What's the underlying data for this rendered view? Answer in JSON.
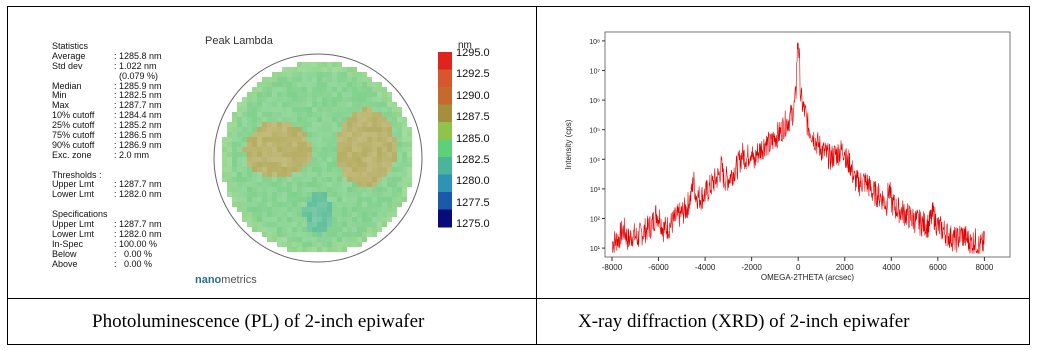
{
  "left_panel": {
    "stats_heading": "Statistics",
    "stats": [
      {
        "k": "Average",
        "v": ": 1285.8 nm"
      },
      {
        "k": "Std dev",
        "v": ": 1.022 nm"
      },
      {
        "k": "",
        "v": "  (0.079 %)"
      },
      {
        "k": "Median",
        "v": ": 1285.9 nm"
      },
      {
        "k": "Min",
        "v": ": 1282.5 nm"
      },
      {
        "k": "Max",
        "v": ": 1287.7 nm"
      },
      {
        "k": "10% cutoff",
        "v": ": 1284.4 nm"
      },
      {
        "k": "25% cutoff",
        "v": ": 1285.2 nm"
      },
      {
        "k": "75% cutoff",
        "v": ": 1286.5 nm"
      },
      {
        "k": "90% cutoff",
        "v": ": 1286.9 nm"
      },
      {
        "k": "Exc. zone",
        "v": ": 2.0 mm"
      }
    ],
    "thresholds_heading": "Thresholds :",
    "thresholds": [
      {
        "k": "Upper Lmt",
        "v": ": 1287.7 nm"
      },
      {
        "k": "Lower Lmt",
        "v": ": 1282.0 nm"
      }
    ],
    "spec_heading": "Specifications",
    "specs": [
      {
        "k": "Upper Lmt",
        "v": ": 1287.7 nm"
      },
      {
        "k": "Lower Lmt",
        "v": ": 1282.0 nm"
      },
      {
        "k": "In-Spec",
        "v": ": 100.00 %"
      },
      {
        "k": "Below",
        "v": ":   0.00 %"
      },
      {
        "k": "Above",
        "v": ":   0.00 %"
      }
    ],
    "brand_bold": "nano",
    "brand_rest": "metrics",
    "caption": "Photoluminescence (PL) of 2-inch epiwafer"
  },
  "right_panel": {
    "caption": "X-ray diffraction (XRD) of 2-inch epiwafer"
  },
  "chart_data": [
    {
      "type": "heatmap",
      "title": "Peak Lambda",
      "colorbar_unit": "nm",
      "colorbar_ticks": [
        1295.0,
        1292.5,
        1290.0,
        1287.5,
        1285.0,
        1282.5,
        1280.0,
        1277.5,
        1275.0
      ],
      "colorbar_tick_labels": [
        "1295.0",
        "1292.5",
        "1290.0",
        "1287.5",
        "1285.0",
        "1282.5",
        "1280.0",
        "1277.5",
        "1275.0"
      ],
      "colorbar_colors": [
        "#e0241d",
        "#d7572c",
        "#c46a2c",
        "#a58f3c",
        "#8fc34a",
        "#5fd07a",
        "#4bb49a",
        "#2f93b8",
        "#1b5aa8",
        "#0a0a7a"
      ],
      "colors": {
        "base": "#7fd08a",
        "warm": "#b5ad62",
        "cool": "#5fbf98",
        "edge": "#8fd48a"
      }
    },
    {
      "type": "line",
      "xlabel": "OMEGA-2THETA  (arcsec)",
      "ylabel": "Intensity (cps)",
      "x_ticks": [
        -8000,
        -6000,
        -4000,
        -2000,
        0,
        2000,
        4000,
        6000,
        8000
      ],
      "x_tick_labels": [
        "-8000",
        "-6000",
        "-4000",
        "-2000",
        "0",
        "2000",
        "4000",
        "6000",
        "8000"
      ],
      "xlim": [
        -8300,
        9100
      ],
      "y_log": true,
      "ylim": [
        5,
        200000000
      ],
      "y_ticks": [
        10,
        100,
        1000,
        10000,
        100000,
        1000000,
        10000000,
        100000000
      ],
      "y_tick_labels": [
        "10¹",
        "10²",
        "10³",
        "10⁴",
        "10⁵",
        "10⁶",
        "10⁷",
        "10⁸"
      ],
      "line_color": "#e00000",
      "series": [
        {
          "x": [
            -8000,
            -7700,
            -7500,
            -7300,
            -7100,
            -6900,
            -6700,
            -6500,
            -6300,
            -6100,
            -5950,
            -5800,
            -5600,
            -5400,
            -5200,
            -5000,
            -4800,
            -4600,
            -4500,
            -4400,
            -4200,
            -4000,
            -3800,
            -3600,
            -3400,
            -3300,
            -3200,
            -3000,
            -2800,
            -2600,
            -2400,
            -2200,
            -2000,
            -1900,
            -1800,
            -1600,
            -1400,
            -1200,
            -1000,
            -800,
            -600,
            -400,
            -300,
            -200,
            -100,
            -50,
            0,
            50,
            100,
            200,
            300,
            400,
            600,
            800,
            1000,
            1200,
            1400,
            1600,
            1800,
            2000,
            2100,
            2200,
            2400,
            2600,
            2800,
            3000,
            3200,
            3400,
            3600,
            3800,
            3900,
            4000,
            4200,
            4400,
            4600,
            4800,
            5000,
            5200,
            5400,
            5600,
            5800,
            6000,
            6200,
            6400,
            6600,
            6800,
            7000,
            7200,
            7400,
            7600,
            7800,
            8000
          ],
          "y": [
            20,
            30,
            60,
            25,
            40,
            30,
            45,
            60,
            80,
            200,
            150,
            60,
            70,
            100,
            150,
            200,
            300,
            800,
            3000,
            800,
            700,
            900,
            1500,
            2500,
            4000,
            8000,
            3000,
            3000,
            5000,
            8000,
            20000,
            15000,
            30000,
            8000,
            20000,
            30000,
            50000,
            40000,
            80000,
            100000,
            200000,
            300000,
            400000,
            600000,
            2000000,
            40000000,
            150000000,
            30000000,
            2000000,
            800000,
            500000,
            200000,
            100000,
            50000,
            30000,
            20000,
            15000,
            20000,
            25000,
            30000,
            8000,
            12000,
            3000,
            2000,
            2500,
            2000,
            1000,
            900,
            700,
            400,
            1500,
            500,
            300,
            250,
            200,
            150,
            120,
            100,
            90,
            80,
            200,
            70,
            60,
            40,
            30,
            25,
            40,
            30,
            20,
            25,
            15,
            20
          ]
        }
      ]
    }
  ]
}
